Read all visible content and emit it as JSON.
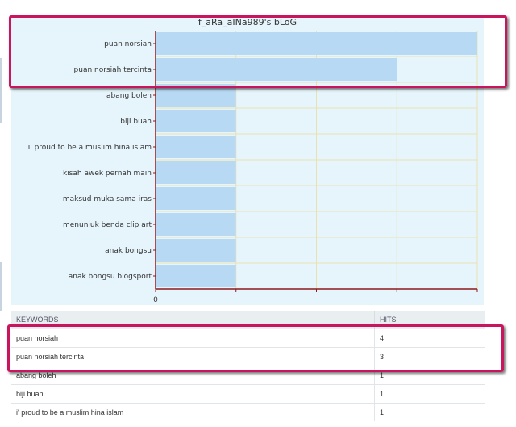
{
  "chart_data": {
    "type": "bar",
    "orientation": "horizontal",
    "title": "f_aRa_aINa989's bLoG",
    "categories": [
      "puan norsiah",
      "puan norsiah tercinta",
      "abang boleh",
      "biji buah",
      "i' proud to be a muslim hina islam",
      "kisah awek pernah main",
      "maksud muka sama iras",
      "menunjuk benda clip art",
      "anak bongsu",
      "anak bongsu blogsport"
    ],
    "values": [
      4,
      3,
      1,
      1,
      1,
      1,
      1,
      1,
      1,
      1
    ],
    "xlim": [
      0,
      4
    ],
    "x_tick_label": "0",
    "grid": true,
    "colors": {
      "bar": "#b8d9f3",
      "axis": "#8b1a1a",
      "grid": "#e9e2b0",
      "plot_bg": "#e6f4fb"
    }
  },
  "table": {
    "headers": [
      "KEYWORDS",
      "HITS"
    ],
    "rows": [
      [
        "puan norsiah",
        "4"
      ],
      [
        "puan norsiah tercinta",
        "3"
      ],
      [
        "abang boleh",
        "1"
      ],
      [
        "biji buah",
        "1"
      ],
      [
        "i' proud to be a muslim hina islam",
        "1"
      ]
    ]
  },
  "annotation_color": "#c8155e"
}
